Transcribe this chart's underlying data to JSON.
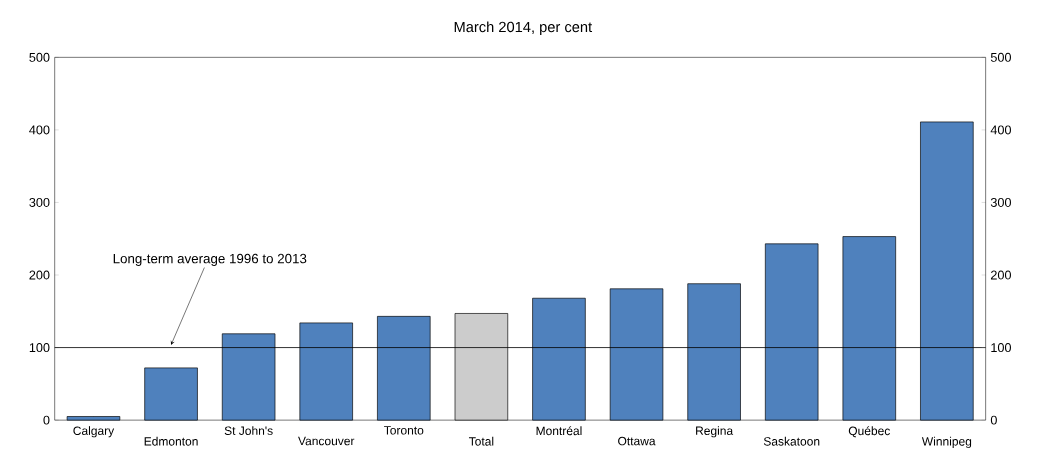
{
  "chart_data": {
    "type": "bar",
    "title": "March 2014, per cent",
    "categories": [
      "Calgary",
      "Edmonton",
      "St John's",
      "Vancouver",
      "Toronto",
      "Total",
      "Montréal",
      "Ottawa",
      "Regina",
      "Saskatoon",
      "Québec",
      "Winnipeg"
    ],
    "values": [
      5,
      72,
      119,
      134,
      143,
      147,
      168,
      181,
      188,
      243,
      253,
      411
    ],
    "colors": [
      "#4f81bd",
      "#4f81bd",
      "#4f81bd",
      "#4f81bd",
      "#4f81bd",
      "#cccccc",
      "#4f81bd",
      "#4f81bd",
      "#4f81bd",
      "#4f81bd",
      "#4f81bd",
      "#4f81bd"
    ],
    "ylim": [
      0,
      500
    ],
    "yticks": [
      0,
      100,
      200,
      300,
      400,
      500
    ],
    "y2lim": [
      0,
      500
    ],
    "y2ticks": [
      0,
      100,
      200,
      300,
      400,
      500
    ],
    "ref_lines": [
      {
        "axis": "y",
        "value": 100,
        "color": "#000000"
      }
    ],
    "annotations": [
      {
        "text": "Long-term average 1996 to 2013",
        "x": "Edmonton",
        "y": 100
      }
    ],
    "grid": false
  }
}
